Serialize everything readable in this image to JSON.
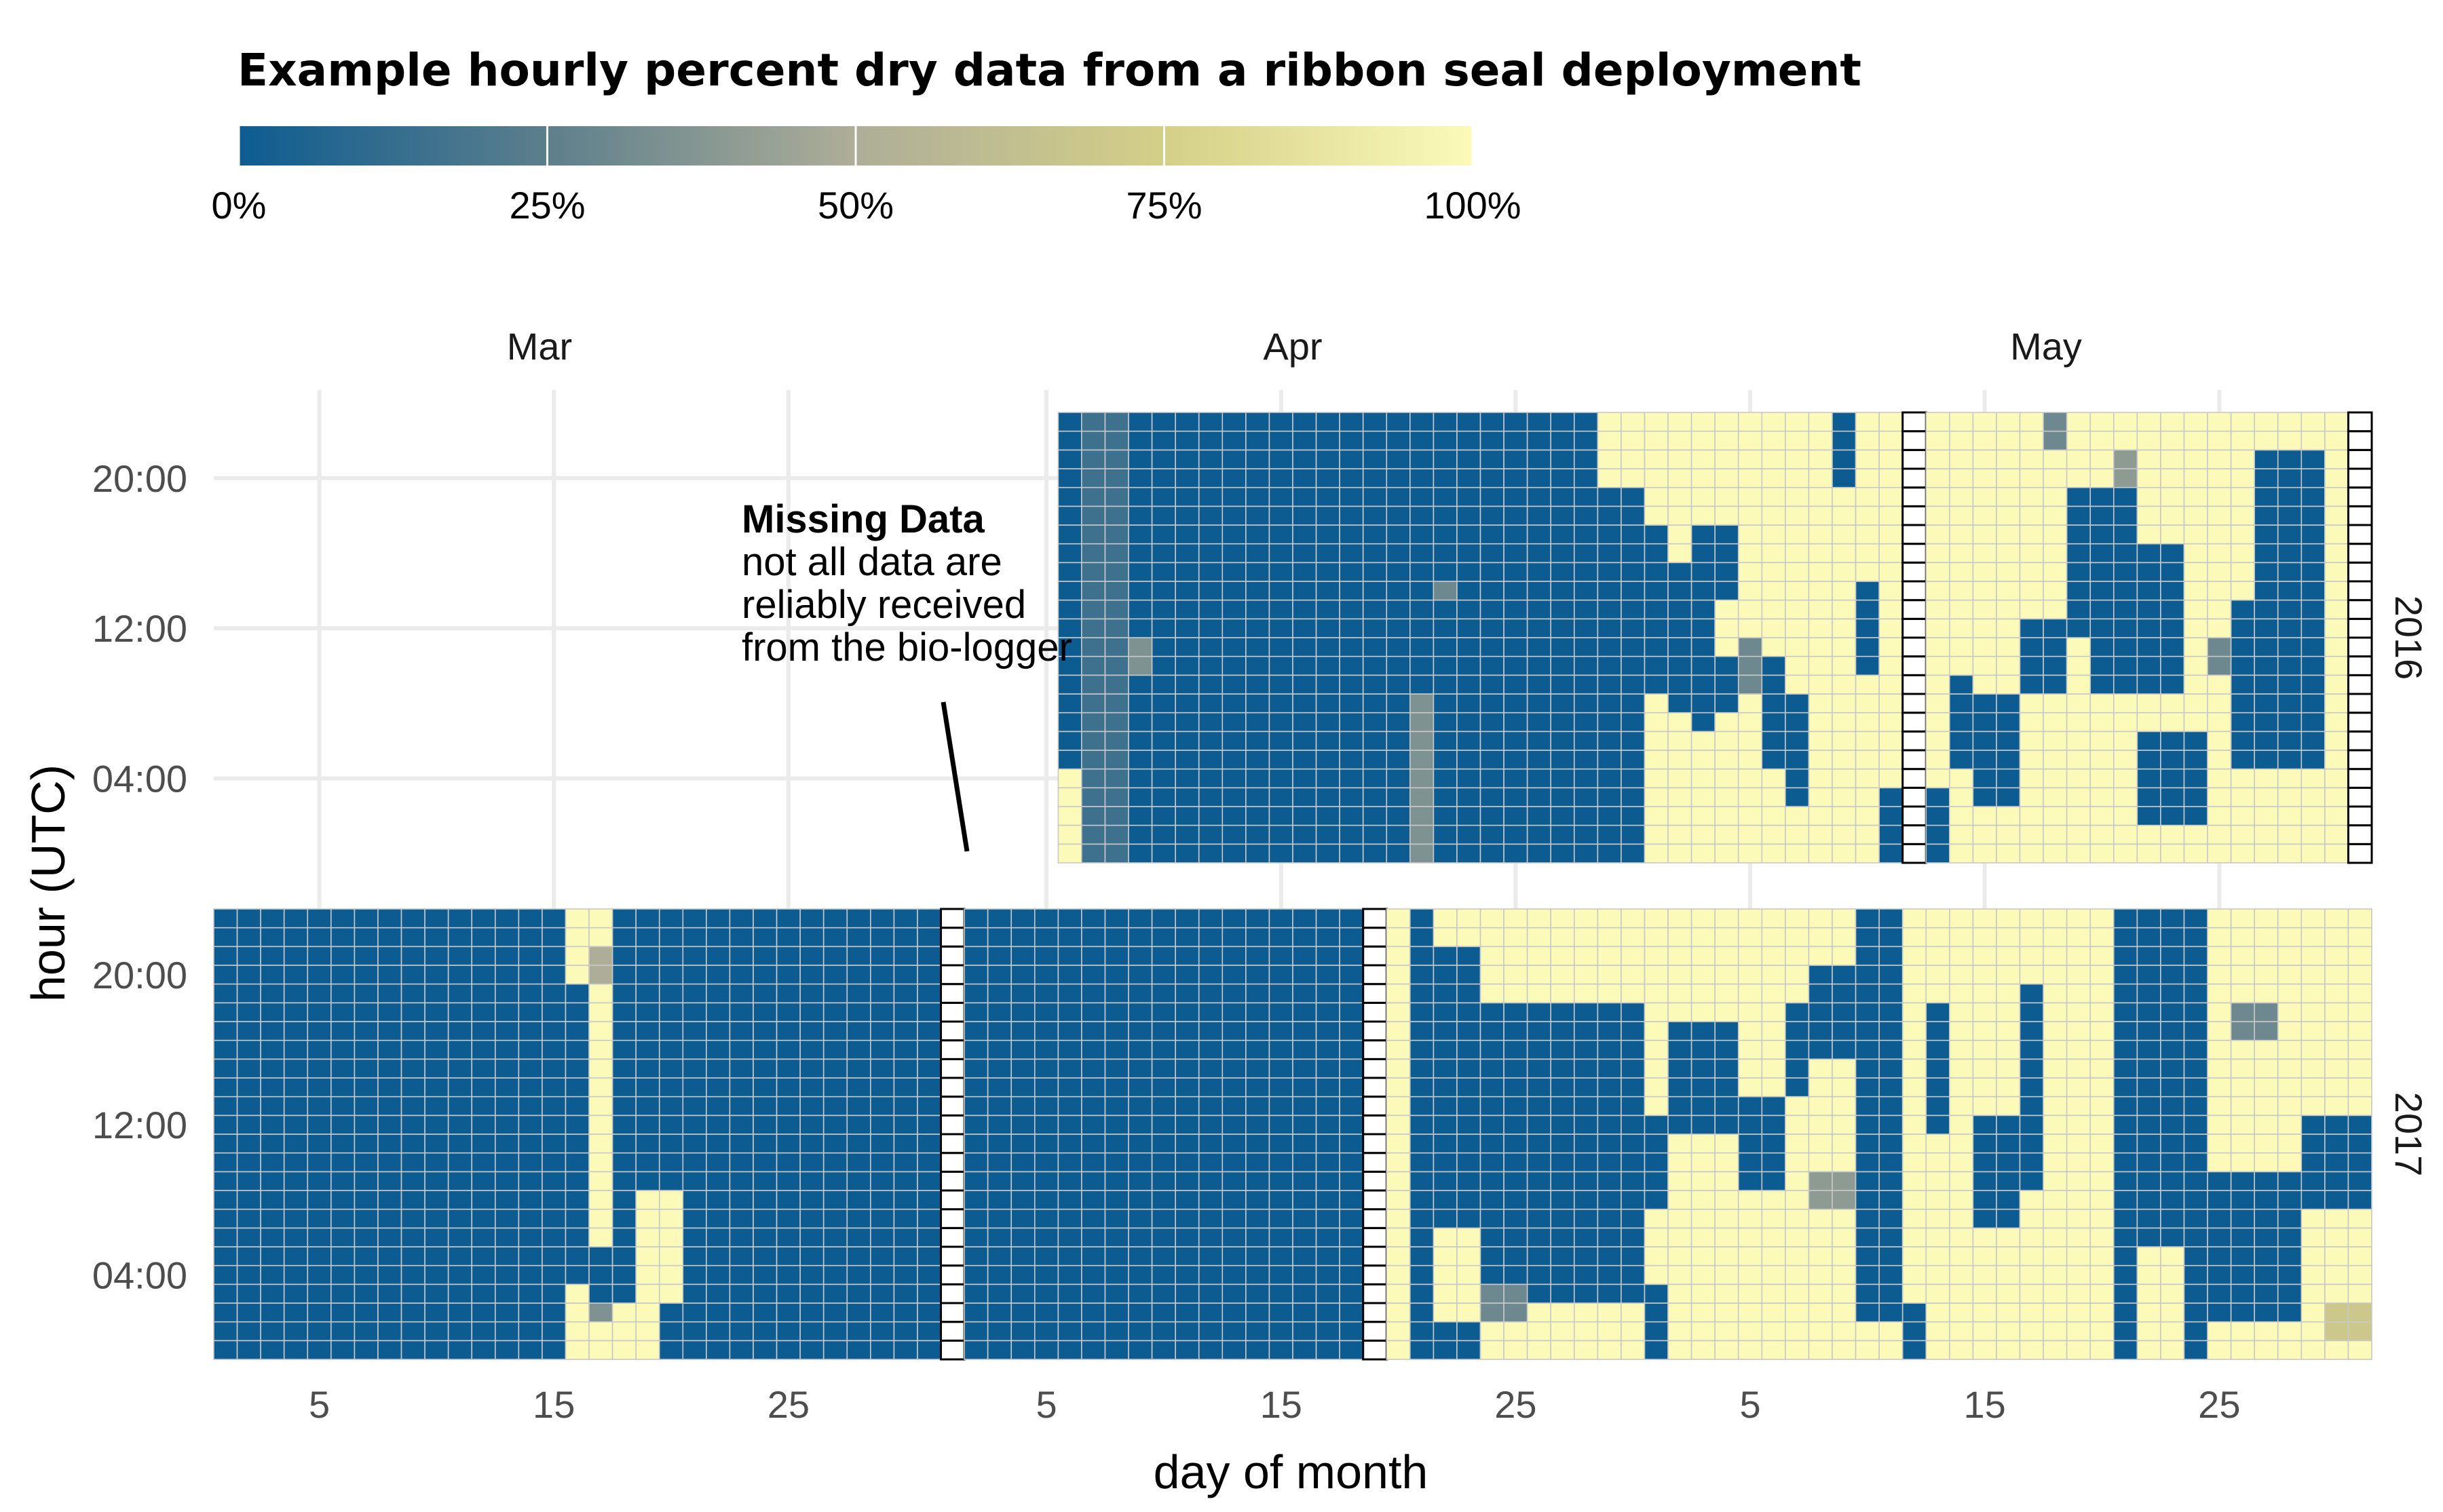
{
  "chart_data": {
    "type": "heatmap",
    "title": "Example hourly percent dry data from a ribbon seal deployment",
    "xlabel": "day of month",
    "ylabel": "hour (UTC)",
    "legend": {
      "position": "top-left",
      "ticks": [
        "0%",
        "25%",
        "50%",
        "75%",
        "100%"
      ],
      "colors": [
        "#0d5c91",
        "#5d7f8c",
        "#aeae98",
        "#d4cf88",
        "#fbfab9"
      ]
    },
    "x_domain": [
      "2017-03-01",
      "2017-05-31"
    ],
    "months": [
      "Mar",
      "Apr",
      "May"
    ],
    "x_ticks": [
      {
        "date": "2017-03-05",
        "label": "5"
      },
      {
        "date": "2017-03-15",
        "label": "15"
      },
      {
        "date": "2017-03-25",
        "label": "25"
      },
      {
        "date": "2017-04-05",
        "label": "5"
      },
      {
        "date": "2017-04-15",
        "label": "15"
      },
      {
        "date": "2017-04-25",
        "label": "25"
      },
      {
        "date": "2017-05-05",
        "label": "5"
      },
      {
        "date": "2017-05-15",
        "label": "15"
      },
      {
        "date": "2017-05-25",
        "label": "25"
      }
    ],
    "y_ticks": [
      {
        "hour": 20,
        "label": "20:00"
      },
      {
        "hour": 12,
        "label": "12:00"
      },
      {
        "hour": 4,
        "label": "04:00"
      }
    ],
    "annotation": {
      "title": "Missing Data",
      "lines": [
        "not all data are",
        "reliably received",
        "from the bio-logger"
      ]
    },
    "facets": [
      {
        "label": "2016",
        "start": "2017-04-06",
        "end": "2017-05-31",
        "missing": [
          "2017-05-12",
          "2017-05-31"
        ],
        "segments": [
          [
            "2017-04-06",
            "2017-04-29",
            0,
            23,
            0
          ],
          [
            "2017-04-06",
            "2017-04-06",
            0,
            4,
            100
          ],
          [
            "2017-04-07",
            "2017-04-08",
            0,
            23,
            15
          ],
          [
            "2017-04-09",
            "2017-04-09",
            10,
            11,
            35
          ],
          [
            "2017-04-21",
            "2017-04-21",
            0,
            8,
            35
          ],
          [
            "2017-04-22",
            "2017-04-22",
            14,
            14,
            30
          ],
          [
            "2017-04-29",
            "2017-05-30",
            0,
            23,
            100
          ],
          [
            "2017-04-29",
            "2017-04-30",
            0,
            19,
            0
          ],
          [
            "2017-05-01",
            "2017-05-01",
            9,
            17,
            0
          ],
          [
            "2017-05-02",
            "2017-05-02",
            8,
            15,
            0
          ],
          [
            "2017-05-03",
            "2017-05-03",
            7,
            13,
            0
          ],
          [
            "2017-05-04",
            "2017-05-04",
            8,
            10,
            0
          ],
          [
            "2017-05-03",
            "2017-05-04",
            14,
            17,
            0
          ],
          [
            "2017-05-06",
            "2017-05-06",
            5,
            10,
            0
          ],
          [
            "2017-05-07",
            "2017-05-07",
            3,
            8,
            0
          ],
          [
            "2017-05-09",
            "2017-05-09",
            20,
            23,
            0
          ],
          [
            "2017-05-10",
            "2017-05-10",
            10,
            14,
            0
          ],
          [
            "2017-05-11",
            "2017-05-11",
            0,
            3,
            0
          ],
          [
            "2017-05-13",
            "2017-05-13",
            0,
            3,
            0
          ],
          [
            "2017-05-14",
            "2017-05-14",
            5,
            9,
            0
          ],
          [
            "2017-05-15",
            "2017-05-16",
            3,
            8,
            0
          ],
          [
            "2017-05-17",
            "2017-05-18",
            9,
            12,
            0
          ],
          [
            "2017-05-19",
            "2017-05-21",
            12,
            19,
            0
          ],
          [
            "2017-05-20",
            "2017-05-23",
            9,
            16,
            0
          ],
          [
            "2017-05-22",
            "2017-05-24",
            2,
            6,
            0
          ],
          [
            "2017-05-26",
            "2017-05-29",
            5,
            13,
            0
          ],
          [
            "2017-05-27",
            "2017-05-29",
            14,
            21,
            0
          ],
          [
            "2017-05-05",
            "2017-05-05",
            9,
            11,
            30
          ],
          [
            "2017-05-12",
            "2017-05-12",
            2,
            3,
            40
          ],
          [
            "2017-05-18",
            "2017-05-18",
            22,
            23,
            30
          ],
          [
            "2017-05-21",
            "2017-05-21",
            20,
            21,
            40
          ],
          [
            "2017-05-25",
            "2017-05-25",
            10,
            11,
            30
          ]
        ]
      },
      {
        "label": "2017",
        "start": "2017-03-01",
        "end": "2017-05-31",
        "missing": [
          "2017-04-01",
          "2017-04-19"
        ],
        "segments": [
          [
            "2017-03-01",
            "2017-04-21",
            0,
            23,
            0
          ],
          [
            "2017-03-16",
            "2017-03-17",
            0,
            23,
            100
          ],
          [
            "2017-03-16",
            "2017-03-16",
            4,
            19,
            0
          ],
          [
            "2017-03-17",
            "2017-03-17",
            3,
            5,
            0
          ],
          [
            "2017-03-18",
            "2017-03-19",
            0,
            2,
            100
          ],
          [
            "2017-03-19",
            "2017-03-20",
            3,
            8,
            100
          ],
          [
            "2017-03-17",
            "2017-03-17",
            20,
            21,
            50
          ],
          [
            "2017-04-19",
            "2017-04-21",
            0,
            23,
            0
          ],
          [
            "2017-04-20",
            "2017-04-20",
            0,
            23,
            100
          ],
          [
            "2017-04-22",
            "2017-05-31",
            0,
            23,
            100
          ],
          [
            "2017-04-22",
            "2017-04-23",
            0,
            1,
            0
          ],
          [
            "2017-04-22",
            "2017-04-23",
            7,
            21,
            0
          ],
          [
            "2017-04-24",
            "2017-04-30",
            3,
            18,
            0
          ],
          [
            "2017-04-25",
            "2017-04-28",
            6,
            16,
            0
          ],
          [
            "2017-04-29",
            "2017-05-01",
            8,
            12,
            0
          ],
          [
            "2017-05-01",
            "2017-05-01",
            0,
            3,
            0
          ],
          [
            "2017-05-02",
            "2017-05-04",
            12,
            17,
            0
          ],
          [
            "2017-05-05",
            "2017-05-06",
            9,
            13,
            0
          ],
          [
            "2017-05-07",
            "2017-05-07",
            14,
            18,
            0
          ],
          [
            "2017-05-08",
            "2017-05-09",
            16,
            20,
            0
          ],
          [
            "2017-05-10",
            "2017-05-11",
            0,
            23,
            0
          ],
          [
            "2017-05-10",
            "2017-05-11",
            0,
            1,
            100
          ],
          [
            "2017-05-12",
            "2017-05-12",
            0,
            2,
            0
          ],
          [
            "2017-05-13",
            "2017-05-13",
            12,
            18,
            0
          ],
          [
            "2017-05-15",
            "2017-05-16",
            7,
            12,
            0
          ],
          [
            "2017-05-17",
            "2017-05-17",
            9,
            19,
            0
          ],
          [
            "2017-05-21",
            "2017-05-24",
            0,
            23,
            0
          ],
          [
            "2017-05-22",
            "2017-05-23",
            0,
            5,
            100
          ],
          [
            "2017-05-25",
            "2017-05-28",
            2,
            9,
            0
          ],
          [
            "2017-05-29",
            "2017-05-31",
            8,
            12,
            0
          ],
          [
            "2017-03-17",
            "2017-03-17",
            2,
            2,
            35
          ],
          [
            "2017-04-24",
            "2017-04-25",
            2,
            3,
            30
          ],
          [
            "2017-05-08",
            "2017-05-09",
            8,
            9,
            40
          ],
          [
            "2017-05-26",
            "2017-05-27",
            17,
            18,
            30
          ],
          [
            "2017-05-30",
            "2017-05-31",
            1,
            2,
            70
          ]
        ]
      }
    ]
  }
}
